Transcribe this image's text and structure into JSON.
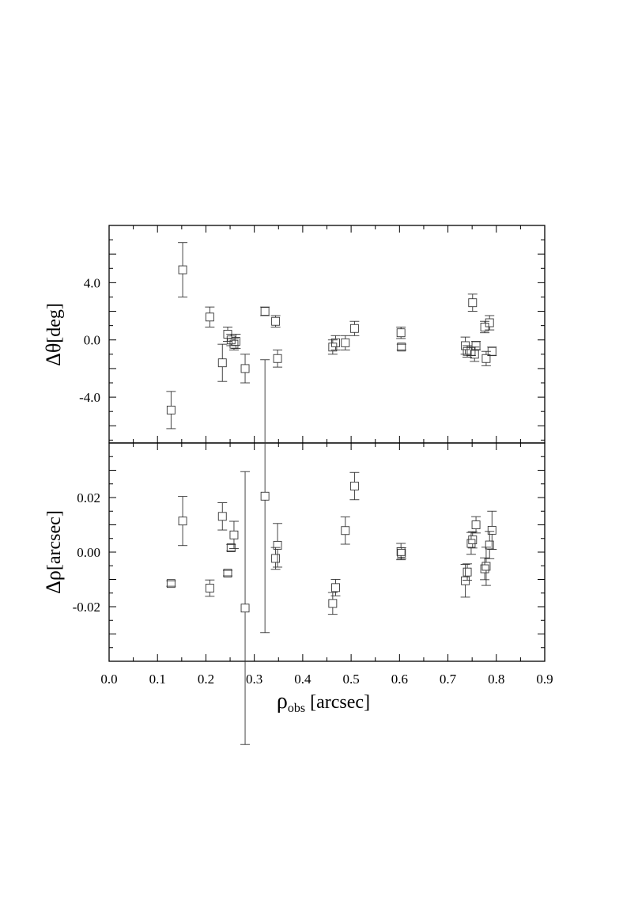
{
  "chart_data": [
    {
      "type": "scatter",
      "panel": "top",
      "ylabel_prefix": "Δθ",
      "ylabel_unit": "[deg]",
      "xlim": [
        0.0,
        0.9
      ],
      "ylim": [
        -7.2,
        8.0
      ],
      "yticks": [
        -4.0,
        0.0,
        4.0
      ],
      "ytick_labels": [
        "-4.0",
        "0.0",
        "4.0"
      ],
      "grid": false,
      "points": [
        {
          "x": 0.128,
          "y": -4.9,
          "err": 1.3
        },
        {
          "x": 0.152,
          "y": 4.9,
          "err": 1.9
        },
        {
          "x": 0.208,
          "y": 1.6,
          "err": 0.7
        },
        {
          "x": 0.234,
          "y": -1.6,
          "err": 1.3
        },
        {
          "x": 0.245,
          "y": 0.4,
          "err": 0.5
        },
        {
          "x": 0.252,
          "y": 0.0,
          "err": 0.4
        },
        {
          "x": 0.258,
          "y": -0.3,
          "err": 0.4
        },
        {
          "x": 0.262,
          "y": -0.1,
          "err": 0.5
        },
        {
          "x": 0.281,
          "y": -2.0,
          "err": 1.0
        },
        {
          "x": 0.322,
          "y": 2.0,
          "err": 0.3
        },
        {
          "x": 0.344,
          "y": 1.3,
          "err": 0.4
        },
        {
          "x": 0.348,
          "y": -1.3,
          "err": 0.6
        },
        {
          "x": 0.462,
          "y": -0.5,
          "err": 0.5
        },
        {
          "x": 0.468,
          "y": -0.2,
          "err": 0.5
        },
        {
          "x": 0.488,
          "y": -0.2,
          "err": 0.5
        },
        {
          "x": 0.507,
          "y": 0.8,
          "err": 0.5
        },
        {
          "x": 0.603,
          "y": 0.5,
          "err": 0.4
        },
        {
          "x": 0.604,
          "y": -0.5,
          "err": 0.2
        },
        {
          "x": 0.736,
          "y": -0.4,
          "err": 0.6
        },
        {
          "x": 0.74,
          "y": -0.8,
          "err": 0.4
        },
        {
          "x": 0.748,
          "y": -0.8,
          "err": 0.3
        },
        {
          "x": 0.751,
          "y": 2.6,
          "err": 0.6
        },
        {
          "x": 0.755,
          "y": -1.0,
          "err": 0.5
        },
        {
          "x": 0.758,
          "y": -0.4,
          "err": 0.3
        },
        {
          "x": 0.776,
          "y": 0.9,
          "err": 0.4
        },
        {
          "x": 0.779,
          "y": -1.3,
          "err": 0.5
        },
        {
          "x": 0.786,
          "y": 1.2,
          "err": 0.5
        },
        {
          "x": 0.791,
          "y": -0.8,
          "err": 0.3
        }
      ]
    },
    {
      "type": "scatter",
      "panel": "bottom",
      "ylabel_prefix": "Δρ",
      "ylabel_unit": "[arcsec]",
      "xlabel_main": "ρ",
      "xlabel_sub": "obs",
      "xlabel_unit": "[arcsec]",
      "xlim": [
        0.0,
        0.9
      ],
      "ylim": [
        -0.04,
        0.04
      ],
      "xticks": [
        0.0,
        0.1,
        0.2,
        0.3,
        0.4,
        0.5,
        0.6,
        0.7,
        0.8,
        0.9
      ],
      "xtick_labels": [
        "0.0",
        "0.1",
        "0.2",
        "0.3",
        "0.4",
        "0.5",
        "0.6",
        "0.7",
        "0.8",
        "0.9"
      ],
      "yticks": [
        -0.02,
        0.0,
        0.02
      ],
      "ytick_labels": [
        "-0.02",
        "0.00",
        "0.02"
      ],
      "grid": false,
      "points": [
        {
          "x": 0.128,
          "y": -0.0115,
          "err": 0.001
        },
        {
          "x": 0.152,
          "y": 0.0114,
          "err": 0.009
        },
        {
          "x": 0.208,
          "y": -0.0132,
          "err": 0.003
        },
        {
          "x": 0.234,
          "y": 0.0131,
          "err": 0.005
        },
        {
          "x": 0.245,
          "y": -0.0077,
          "err": 0.001
        },
        {
          "x": 0.252,
          "y": 0.0016,
          "err": 0.0012
        },
        {
          "x": 0.258,
          "y": 0.0063,
          "err": 0.005
        },
        {
          "x": 0.281,
          "y": -0.0205,
          "err": 0.05
        },
        {
          "x": 0.322,
          "y": 0.0205,
          "err": 0.05
        },
        {
          "x": 0.344,
          "y": -0.0023,
          "err": 0.004
        },
        {
          "x": 0.348,
          "y": 0.0025,
          "err": 0.008
        },
        {
          "x": 0.462,
          "y": -0.0188,
          "err": 0.004
        },
        {
          "x": 0.468,
          "y": -0.013,
          "err": 0.003
        },
        {
          "x": 0.488,
          "y": 0.0079,
          "err": 0.005
        },
        {
          "x": 0.507,
          "y": 0.0242,
          "err": 0.005
        },
        {
          "x": 0.603,
          "y": 0.0002,
          "err": 0.003
        },
        {
          "x": 0.604,
          "y": -0.0004,
          "err": 0.002
        },
        {
          "x": 0.736,
          "y": -0.0105,
          "err": 0.006
        },
        {
          "x": 0.74,
          "y": -0.0073,
          "err": 0.003
        },
        {
          "x": 0.748,
          "y": 0.0032,
          "err": 0.004
        },
        {
          "x": 0.751,
          "y": 0.0045,
          "err": 0.003
        },
        {
          "x": 0.758,
          "y": 0.01,
          "err": 0.003
        },
        {
          "x": 0.776,
          "y": -0.0061,
          "err": 0.004
        },
        {
          "x": 0.779,
          "y": -0.0052,
          "err": 0.007
        },
        {
          "x": 0.786,
          "y": 0.0026,
          "err": 0.005
        },
        {
          "x": 0.791,
          "y": 0.008,
          "err": 0.007
        }
      ]
    }
  ]
}
